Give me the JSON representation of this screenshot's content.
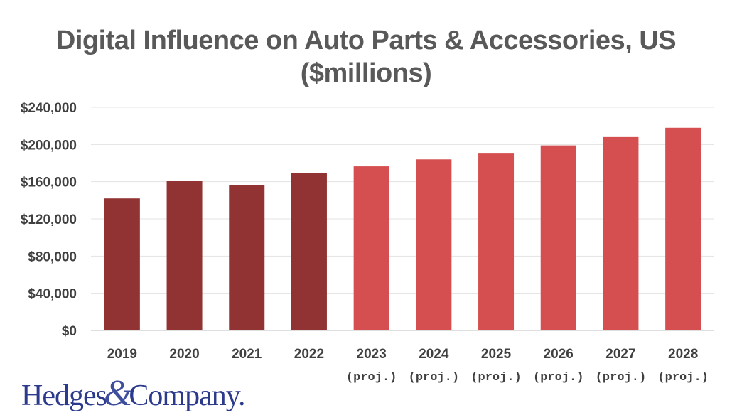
{
  "chart_data": {
    "type": "bar",
    "title_line1": "Digital Influence on Auto Parts & Accessories, US",
    "title_line2": "($millions)",
    "categories": [
      "2019",
      "2020",
      "2021",
      "2022",
      "2023",
      "2024",
      "2025",
      "2026",
      "2027",
      "2028"
    ],
    "category_sublabels": [
      "",
      "",
      "",
      "",
      "(proj.)",
      "(proj.)",
      "(proj.)",
      "(proj.)",
      "(proj.)",
      "(proj.)"
    ],
    "values": [
      142000,
      161000,
      156000,
      169500,
      176500,
      184000,
      191000,
      199000,
      208000,
      218000
    ],
    "projected": [
      false,
      false,
      false,
      false,
      true,
      true,
      true,
      true,
      true,
      true
    ],
    "ylim": [
      0,
      240000
    ],
    "yticks": [
      0,
      40000,
      80000,
      120000,
      160000,
      200000,
      240000
    ],
    "ytick_labels": [
      "$0",
      "$40,000",
      "$80,000",
      "$120,000",
      "$160,000",
      "$200,000",
      "$240,000"
    ],
    "grid": true,
    "colors": {
      "actual": "#923333",
      "projected": "#d64f50",
      "grid": "#e3e3e3"
    }
  },
  "logo": {
    "left": "Hedges",
    "amp": "&",
    "right": "Company."
  }
}
